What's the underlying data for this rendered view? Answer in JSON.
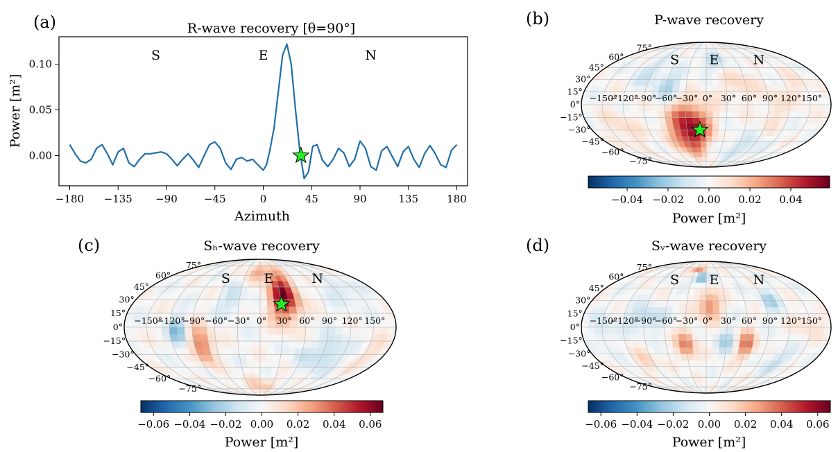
{
  "chart_data": [
    {
      "id": "a",
      "type": "line",
      "panel_label": "(a)",
      "title": "R-wave recovery [θ=90°]",
      "xlabel": "Azimuth",
      "ylabel": "Power [m²]",
      "xlim": [
        -190,
        190
      ],
      "ylim": [
        -0.033,
        0.13
      ],
      "xticks": [
        -180,
        -135,
        -90,
        -45,
        0,
        45,
        90,
        135,
        180
      ],
      "xtick_labels": [
        "−180",
        "−135",
        "−90",
        "−45",
        "0",
        "45",
        "90",
        "135",
        "180"
      ],
      "yticks": [
        0.0,
        0.05,
        0.1
      ],
      "ytick_labels": [
        "0.00",
        "0.05",
        "0.10"
      ],
      "series": [
        {
          "color": "#1f6fa8",
          "x": [
            -180,
            -175,
            -170,
            -165,
            -160,
            -155,
            -150,
            -145,
            -140,
            -135,
            -130,
            -125,
            -120,
            -115,
            -110,
            -105,
            -100,
            -95,
            -90,
            -85,
            -80,
            -75,
            -70,
            -65,
            -60,
            -55,
            -50,
            -45,
            -40,
            -35,
            -30,
            -25,
            -20,
            -15,
            -10,
            -5,
            0,
            3,
            6,
            10,
            14,
            18,
            22,
            26,
            30,
            34,
            38,
            42,
            46,
            50,
            55,
            60,
            65,
            70,
            75,
            80,
            85,
            90,
            95,
            100,
            105,
            110,
            115,
            120,
            125,
            130,
            135,
            140,
            145,
            150,
            155,
            160,
            165,
            170,
            175,
            180
          ],
          "y": [
            0.012,
            0.002,
            -0.006,
            -0.008,
            -0.004,
            0.008,
            0.012,
            0.002,
            -0.01,
            0.004,
            0.008,
            -0.008,
            -0.012,
            -0.004,
            0.002,
            0.002,
            0.003,
            0.004,
            0.002,
            -0.004,
            -0.011,
            -0.004,
            0.002,
            -0.005,
            -0.013,
            0.0,
            0.012,
            0.015,
            0.008,
            -0.008,
            -0.015,
            -0.004,
            -0.002,
            -0.006,
            -0.004,
            -0.01,
            -0.016,
            -0.01,
            0.005,
            0.03,
            0.07,
            0.11,
            0.122,
            0.1,
            0.05,
            0.005,
            -0.025,
            -0.018,
            0.01,
            0.012,
            -0.005,
            -0.012,
            -0.004,
            0.008,
            0.003,
            -0.012,
            -0.004,
            0.016,
            0.008,
            -0.012,
            -0.016,
            0.005,
            0.01,
            -0.001,
            -0.012,
            0.004,
            0.01,
            -0.004,
            -0.013,
            0.002,
            0.011,
            0.002,
            -0.01,
            -0.013,
            0.006,
            0.012
          ]
        }
      ],
      "direction_labels": [
        {
          "text": "S",
          "x": -100,
          "y": 0.105
        },
        {
          "text": "E",
          "x": 0,
          "y": 0.105
        },
        {
          "text": "N",
          "x": 100,
          "y": 0.105
        }
      ],
      "marker": {
        "shape": "star",
        "color": "#22ee22",
        "x": 35,
        "y": 0.0
      }
    },
    {
      "id": "b",
      "type": "heatmap",
      "projection": "mollweide",
      "panel_label": "(b)",
      "title": "P-wave recovery",
      "colorbar": {
        "label": "Power [m²]",
        "range": [
          -0.059,
          0.059
        ],
        "ticks": [
          -0.04,
          -0.02,
          0.0,
          0.02,
          0.04
        ],
        "tick_labels": [
          "−0.04",
          "−0.02",
          "0.00",
          "0.02",
          "0.04"
        ],
        "cmap": "RdBu_r"
      },
      "lon_labels": [
        "−150°",
        "−120°",
        "−90°",
        "−60°",
        "−30°",
        "0°",
        "30°",
        "60°",
        "90°",
        "120°",
        "150°"
      ],
      "lat_labels": [
        "−75°",
        "−60°",
        "−45°",
        "−30°",
        "−15°",
        "0°",
        "15°",
        "30°",
        "45°",
        "60°",
        "75°"
      ],
      "direction_labels": [
        {
          "text": "S",
          "lon": -60,
          "lat": 50
        },
        {
          "text": "E",
          "lon": 15,
          "lat": 50
        },
        {
          "text": "N",
          "lon": 100,
          "lat": 50
        }
      ],
      "blobs": [
        {
          "lon": -25,
          "lat": -30,
          "sx": 22,
          "sy": 22,
          "v": 0.055
        },
        {
          "lon": -55,
          "lat": 22,
          "sx": 15,
          "sy": 12,
          "v": -0.018
        },
        {
          "lon": 15,
          "lat": 55,
          "sx": 20,
          "sy": 10,
          "v": -0.015
        },
        {
          "lon": 50,
          "lat": 25,
          "sx": 18,
          "sy": 15,
          "v": 0.012
        },
        {
          "lon": 70,
          "lat": -55,
          "sx": 25,
          "sy": 12,
          "v": -0.012
        },
        {
          "lon": -130,
          "lat": -30,
          "sx": 18,
          "sy": 18,
          "v": 0.01
        },
        {
          "lon": 140,
          "lat": 20,
          "sx": 15,
          "sy": 15,
          "v": 0.008
        },
        {
          "lon": -95,
          "lat": 40,
          "sx": 15,
          "sy": 12,
          "v": -0.012
        },
        {
          "lon": 100,
          "lat": -5,
          "sx": 12,
          "sy": 18,
          "v": 0.01
        }
      ],
      "marker": {
        "shape": "star",
        "color": "#22ee22",
        "lon": -10,
        "lat": -30
      }
    },
    {
      "id": "c",
      "type": "heatmap",
      "projection": "mollweide",
      "panel_label": "(c)",
      "title": "Sₕ-wave recovery",
      "colorbar": {
        "label": "Power [m²]",
        "range": [
          -0.067,
          0.067
        ],
        "ticks": [
          -0.06,
          -0.04,
          -0.02,
          0.0,
          0.02,
          0.04,
          0.06
        ],
        "tick_labels": [
          "−0.06",
          "−0.04",
          "−0.02",
          "0.00",
          "0.02",
          "0.04",
          "0.06"
        ],
        "cmap": "RdBu_r"
      },
      "lon_labels": [
        "−150°",
        "−120°",
        "−90°",
        "−60°",
        "−30°",
        "0°",
        "30°",
        "60°",
        "90°",
        "120°",
        "150°"
      ],
      "lat_labels": [
        "−75°",
        "−60°",
        "−45°",
        "−30°",
        "−15°",
        "0°",
        "15°",
        "30°",
        "45°",
        "60°",
        "75°"
      ],
      "direction_labels": [
        {
          "text": "S",
          "lon": -60,
          "lat": 50
        },
        {
          "text": "E",
          "lon": 15,
          "lat": 50
        },
        {
          "text": "N",
          "lon": 100,
          "lat": 50
        }
      ],
      "blobs": [
        {
          "lon": 35,
          "lat": 35,
          "sx": 15,
          "sy": 20,
          "v": 0.062
        },
        {
          "lon": -80,
          "lat": -20,
          "sx": 10,
          "sy": 15,
          "v": 0.04
        },
        {
          "lon": -110,
          "lat": -5,
          "sx": 8,
          "sy": 12,
          "v": -0.03
        },
        {
          "lon": -40,
          "lat": 30,
          "sx": 12,
          "sy": 12,
          "v": -0.015
        },
        {
          "lon": 100,
          "lat": -30,
          "sx": 15,
          "sy": 15,
          "v": -0.02
        },
        {
          "lon": 130,
          "lat": 40,
          "sx": 20,
          "sy": 10,
          "v": -0.012
        },
        {
          "lon": 0,
          "lat": 65,
          "sx": 20,
          "sy": 8,
          "v": 0.025
        },
        {
          "lon": 0,
          "lat": -70,
          "sx": 30,
          "sy": 8,
          "v": 0.018
        },
        {
          "lon": 160,
          "lat": -30,
          "sx": 12,
          "sy": 15,
          "v": 0.01
        },
        {
          "lon": 60,
          "lat": -30,
          "sx": 10,
          "sy": 10,
          "v": -0.012
        }
      ],
      "marker": {
        "shape": "star",
        "color": "#22ee22",
        "lon": 30,
        "lat": 25
      }
    },
    {
      "id": "d",
      "type": "heatmap",
      "projection": "mollweide",
      "panel_label": "(d)",
      "title": "Sᵥ-wave recovery",
      "colorbar": {
        "label": "Power [m²]",
        "range": [
          -0.067,
          0.067
        ],
        "ticks": [
          -0.06,
          -0.04,
          -0.02,
          0.0,
          0.02,
          0.04,
          0.06
        ],
        "tick_labels": [
          "−0.06",
          "−0.04",
          "−0.02",
          "0.00",
          "0.02",
          "0.04",
          "0.06"
        ],
        "cmap": "RdBu_r"
      },
      "lon_labels": [
        "−150°",
        "−120°",
        "−90°",
        "−60°",
        "−30°",
        "0°",
        "30°",
        "60°",
        "90°",
        "120°",
        "150°"
      ],
      "lat_labels": [
        "−75°",
        "−60°",
        "−45°",
        "−30°",
        "−15°",
        "0°",
        "15°",
        "30°",
        "45°",
        "60°",
        "75°"
      ],
      "direction_labels": [
        {
          "text": "S",
          "lon": -60,
          "lat": 50
        },
        {
          "text": "E",
          "lon": 15,
          "lat": 50
        },
        {
          "text": "N",
          "lon": 100,
          "lat": 50
        }
      ],
      "blobs": [
        {
          "lon": -20,
          "lat": 72,
          "sx": 15,
          "sy": 5,
          "v": 0.04
        },
        {
          "lon": -10,
          "lat": 60,
          "sx": 10,
          "sy": 6,
          "v": -0.045
        },
        {
          "lon": 5,
          "lat": 25,
          "sx": 12,
          "sy": 12,
          "v": 0.035
        },
        {
          "lon": -30,
          "lat": -20,
          "sx": 10,
          "sy": 12,
          "v": 0.035
        },
        {
          "lon": 60,
          "lat": -20,
          "sx": 10,
          "sy": 12,
          "v": 0.035
        },
        {
          "lon": 30,
          "lat": -15,
          "sx": 10,
          "sy": 10,
          "v": -0.02
        },
        {
          "lon": -90,
          "lat": 10,
          "sx": 20,
          "sy": 10,
          "v": -0.02
        },
        {
          "lon": 100,
          "lat": 30,
          "sx": 10,
          "sy": 10,
          "v": -0.02
        },
        {
          "lon": -100,
          "lat": -40,
          "sx": 12,
          "sy": 10,
          "v": 0.015
        },
        {
          "lon": 120,
          "lat": -40,
          "sx": 15,
          "sy": 10,
          "v": -0.015
        },
        {
          "lon": 150,
          "lat": 5,
          "sx": 15,
          "sy": 10,
          "v": 0.012
        },
        {
          "lon": -150,
          "lat": -5,
          "sx": 10,
          "sy": 15,
          "v": -0.012
        }
      ],
      "marker": null
    }
  ]
}
